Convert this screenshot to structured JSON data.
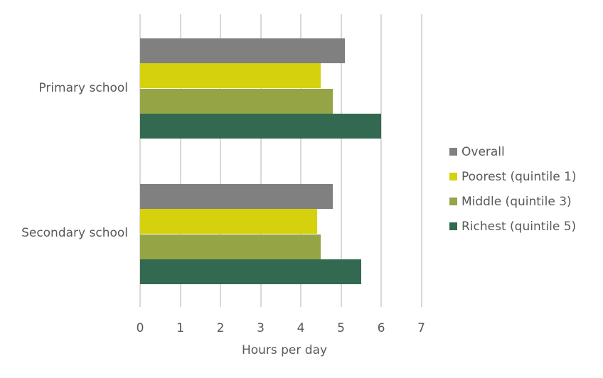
{
  "chart_data": {
    "type": "bar",
    "orientation": "horizontal",
    "title": "",
    "xlabel": "Hours per day",
    "ylabel": "",
    "xlim": [
      0,
      7
    ],
    "x_ticks": [
      "0",
      "1",
      "2",
      "3",
      "4",
      "5",
      "6",
      "7"
    ],
    "grid": true,
    "legend_position": "right",
    "categories": [
      "Primary school",
      "Secondary school"
    ],
    "series": [
      {
        "name": "Overall",
        "color": "#808080",
        "values": [
          5.1,
          4.8
        ]
      },
      {
        "name": "Poorest (quintile 1)",
        "color": "#d6d10d",
        "values": [
          4.5,
          4.4
        ]
      },
      {
        "name": "Middle (quintile 3)",
        "color": "#95a545",
        "values": [
          4.8,
          4.5
        ]
      },
      {
        "name": "Richest (quintile 5)",
        "color": "#336950",
        "values": [
          6.0,
          5.5
        ]
      }
    ]
  }
}
